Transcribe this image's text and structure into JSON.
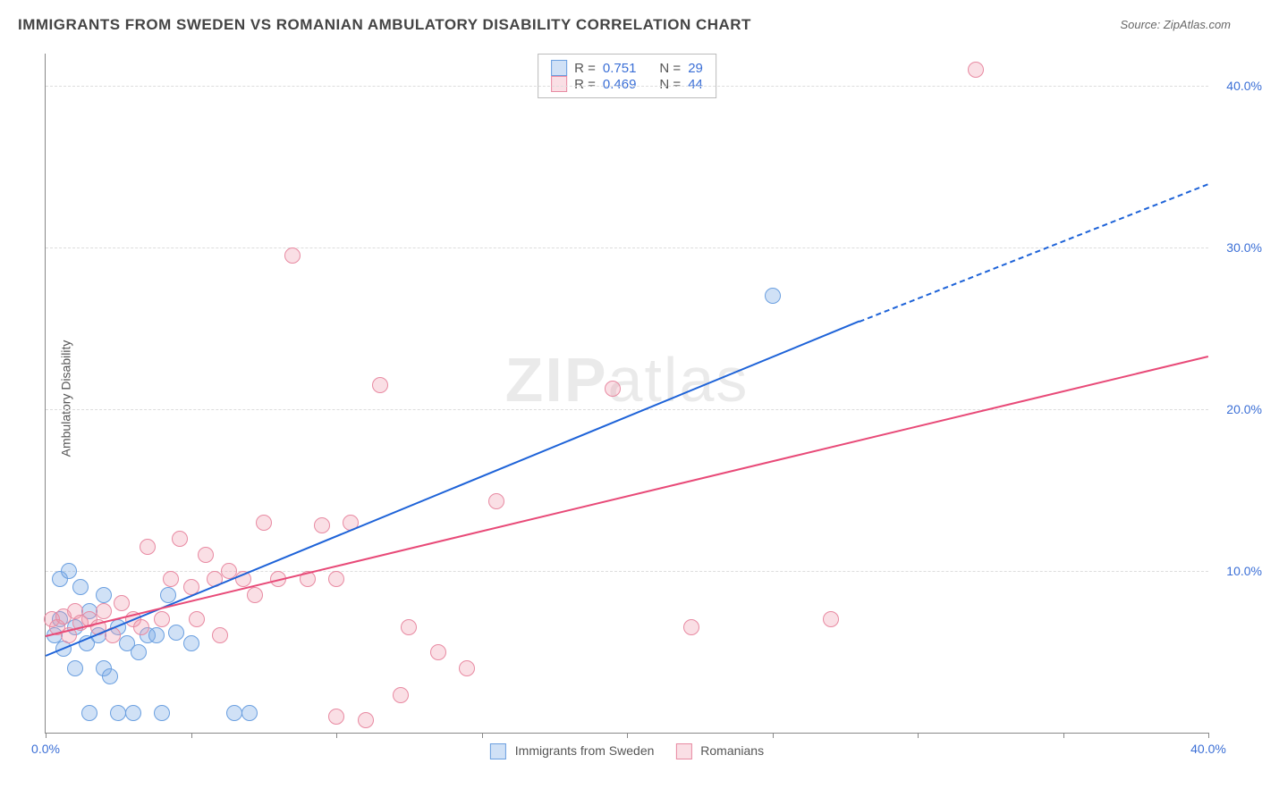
{
  "title": "IMMIGRANTS FROM SWEDEN VS ROMANIAN AMBULATORY DISABILITY CORRELATION CHART",
  "source": "Source: ZipAtlas.com",
  "ylabel": "Ambulatory Disability",
  "watermark_bold": "ZIP",
  "watermark_light": "atlas",
  "chart": {
    "type": "scatter",
    "xlim": [
      0,
      40
    ],
    "ylim": [
      0,
      42
    ],
    "grid_color": "#dddddd",
    "axis_color": "#888888",
    "background_color": "#ffffff",
    "ytick_step": 10,
    "ytick_labels": [
      "10.0%",
      "20.0%",
      "30.0%",
      "40.0%"
    ],
    "xtick_positions": [
      0,
      5,
      10,
      15,
      20,
      25,
      30,
      35,
      40
    ],
    "xtick_labels": {
      "0": "0.0%",
      "40": "40.0%"
    },
    "point_radius": 8,
    "point_stroke_width": 1,
    "series": [
      {
        "name": "Immigrants from Sweden",
        "color_fill": "rgba(120,170,230,0.35)",
        "color_stroke": "#6a9fe0",
        "trend_color": "#1e63d8",
        "R": "0.751",
        "N": "29",
        "trend": {
          "x1": 0,
          "y1": 4.8,
          "x2": 28,
          "y2": 25.5,
          "dash_from_x": 28,
          "dash_to_x": 40,
          "dash_to_y": 34.0
        },
        "points": [
          {
            "x": 0.3,
            "y": 6.0
          },
          {
            "x": 0.5,
            "y": 7.0
          },
          {
            "x": 0.5,
            "y": 9.5
          },
          {
            "x": 0.6,
            "y": 5.2
          },
          {
            "x": 0.8,
            "y": 10.0
          },
          {
            "x": 1.0,
            "y": 6.5
          },
          {
            "x": 1.0,
            "y": 4.0
          },
          {
            "x": 1.2,
            "y": 9.0
          },
          {
            "x": 1.4,
            "y": 5.5
          },
          {
            "x": 1.5,
            "y": 7.5
          },
          {
            "x": 1.5,
            "y": 1.2
          },
          {
            "x": 1.8,
            "y": 6.0
          },
          {
            "x": 2.0,
            "y": 8.5
          },
          {
            "x": 2.0,
            "y": 4.0
          },
          {
            "x": 2.2,
            "y": 3.5
          },
          {
            "x": 2.5,
            "y": 6.5
          },
          {
            "x": 2.5,
            "y": 1.2
          },
          {
            "x": 2.8,
            "y": 5.5
          },
          {
            "x": 3.0,
            "y": 1.2
          },
          {
            "x": 3.2,
            "y": 5.0
          },
          {
            "x": 3.5,
            "y": 6.0
          },
          {
            "x": 3.8,
            "y": 6.0
          },
          {
            "x": 4.0,
            "y": 1.2
          },
          {
            "x": 4.2,
            "y": 8.5
          },
          {
            "x": 4.5,
            "y": 6.2
          },
          {
            "x": 5.0,
            "y": 5.5
          },
          {
            "x": 6.5,
            "y": 1.2
          },
          {
            "x": 7.0,
            "y": 1.2
          },
          {
            "x": 25.0,
            "y": 27.0
          }
        ]
      },
      {
        "name": "Romanians",
        "color_fill": "rgba(240,150,170,0.30)",
        "color_stroke": "#e88aa2",
        "trend_color": "#e84a78",
        "R": "0.469",
        "N": "44",
        "trend": {
          "x1": 0,
          "y1": 6.0,
          "x2": 40,
          "y2": 23.3
        },
        "points": [
          {
            "x": 0.2,
            "y": 7.0
          },
          {
            "x": 0.4,
            "y": 6.5
          },
          {
            "x": 0.6,
            "y": 7.2
          },
          {
            "x": 0.8,
            "y": 6.0
          },
          {
            "x": 1.0,
            "y": 7.5
          },
          {
            "x": 1.2,
            "y": 6.8
          },
          {
            "x": 1.5,
            "y": 7.0
          },
          {
            "x": 1.8,
            "y": 6.5
          },
          {
            "x": 2.0,
            "y": 7.5
          },
          {
            "x": 2.3,
            "y": 6.0
          },
          {
            "x": 2.6,
            "y": 8.0
          },
          {
            "x": 3.0,
            "y": 7.0
          },
          {
            "x": 3.3,
            "y": 6.5
          },
          {
            "x": 3.5,
            "y": 11.5
          },
          {
            "x": 4.0,
            "y": 7.0
          },
          {
            "x": 4.3,
            "y": 9.5
          },
          {
            "x": 4.6,
            "y": 12.0
          },
          {
            "x": 5.0,
            "y": 9.0
          },
          {
            "x": 5.2,
            "y": 7.0
          },
          {
            "x": 5.5,
            "y": 11.0
          },
          {
            "x": 5.8,
            "y": 9.5
          },
          {
            "x": 6.0,
            "y": 6.0
          },
          {
            "x": 6.3,
            "y": 10.0
          },
          {
            "x": 6.8,
            "y": 9.5
          },
          {
            "x": 7.2,
            "y": 8.5
          },
          {
            "x": 7.5,
            "y": 13.0
          },
          {
            "x": 8.0,
            "y": 9.5
          },
          {
            "x": 8.5,
            "y": 29.5
          },
          {
            "x": 9.0,
            "y": 9.5
          },
          {
            "x": 9.5,
            "y": 12.8
          },
          {
            "x": 10.0,
            "y": 9.5
          },
          {
            "x": 10.0,
            "y": 1.0
          },
          {
            "x": 10.5,
            "y": 13.0
          },
          {
            "x": 11.0,
            "y": 0.8
          },
          {
            "x": 11.5,
            "y": 21.5
          },
          {
            "x": 12.2,
            "y": 2.3
          },
          {
            "x": 12.5,
            "y": 6.5
          },
          {
            "x": 13.5,
            "y": 5.0
          },
          {
            "x": 14.5,
            "y": 4.0
          },
          {
            "x": 15.5,
            "y": 14.3
          },
          {
            "x": 19.5,
            "y": 21.3
          },
          {
            "x": 22.2,
            "y": 6.5
          },
          {
            "x": 27.0,
            "y": 7.0
          },
          {
            "x": 32.0,
            "y": 41.0
          }
        ]
      }
    ]
  },
  "legend_labels": {
    "sweden": "Immigrants from Sweden",
    "romanians": "Romanians"
  },
  "r_label": "R  =",
  "n_label": "N  ="
}
